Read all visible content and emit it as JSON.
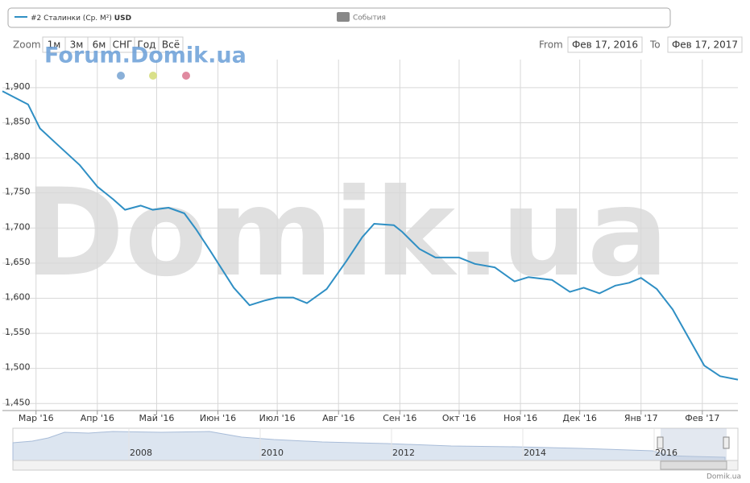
{
  "chart_data": {
    "type": "line",
    "series": [
      {
        "name": "#2 Сталинки (Ср. М²)",
        "unit": "USD",
        "color": "#2f8fc4",
        "values": [
          1895,
          1876,
          1842,
          1821,
          1790,
          1759,
          1741,
          1726,
          1732,
          1726,
          1729,
          1721,
          1698,
          1668,
          1615,
          1590,
          1597,
          1601,
          1601,
          1593,
          1613,
          1653,
          1687,
          1706,
          1704,
          1695,
          1670,
          1658,
          1658,
          1649,
          1644,
          1624,
          1630,
          1626,
          1609,
          1615,
          1607,
          1618,
          1622,
          1629,
          1613,
          1584,
          1544,
          1504,
          1489,
          1484
        ]
      }
    ],
    "x": [
      -17,
      -4,
      2,
      10,
      22,
      31,
      39,
      45,
      53,
      59,
      67,
      75,
      81,
      88,
      100,
      108,
      116,
      122,
      130,
      137,
      147,
      157,
      165,
      171,
      181,
      185,
      194,
      202,
      214,
      222,
      232,
      242,
      249,
      261,
      270,
      277,
      285,
      293,
      300,
      306,
      314,
      322,
      330,
      338,
      346,
      355
    ],
    "xlim": [
      -17,
      355
    ],
    "xticks": [
      {
        "value": 0,
        "label": "Мар '16"
      },
      {
        "value": 31,
        "label": "Апр '16"
      },
      {
        "value": 61,
        "label": "Май '16"
      },
      {
        "value": 92,
        "label": "Июн '16"
      },
      {
        "value": 122,
        "label": "Июл '16"
      },
      {
        "value": 153,
        "label": "Авг '16"
      },
      {
        "value": 184,
        "label": "Сен '16"
      },
      {
        "value": 214,
        "label": "Окт '16"
      },
      {
        "value": 245,
        "label": "Ноя '16"
      },
      {
        "value": 275,
        "label": "Дек '16"
      },
      {
        "value": 306,
        "label": "Янв '17"
      },
      {
        "value": 337,
        "label": "Фев '17"
      }
    ],
    "ylim": [
      1440,
      1940
    ],
    "yticks": [
      {
        "value": 1450,
        "label": "1,450"
      },
      {
        "value": 1500,
        "label": "1,500"
      },
      {
        "value": 1550,
        "label": "1,550"
      },
      {
        "value": 1600,
        "label": "1,600"
      },
      {
        "value": 1650,
        "label": "1,650"
      },
      {
        "value": 1700,
        "label": "1,700"
      },
      {
        "value": 1750,
        "label": "1,750"
      },
      {
        "value": 1800,
        "label": "1,800"
      },
      {
        "value": 1850,
        "label": "1,850"
      },
      {
        "value": 1900,
        "label": "1,900"
      }
    ],
    "grid": true
  },
  "ui": {
    "events_legend": "События",
    "zoom_label": "Zoom",
    "zoom_buttons": [
      "1м",
      "3м",
      "6м",
      "СНГ",
      "Год",
      "Всё"
    ],
    "from_label": "From",
    "from_value": "Фев 17, 2016",
    "to_label": "To",
    "to_value": "Фев 17, 2017",
    "watermark": "Domik.ua",
    "forum_logo": "Forum.Domik.ua",
    "navigator_labels": [
      "2008",
      "2010",
      "2012",
      "2014",
      "2016"
    ],
    "credits": "Domik.ua"
  }
}
